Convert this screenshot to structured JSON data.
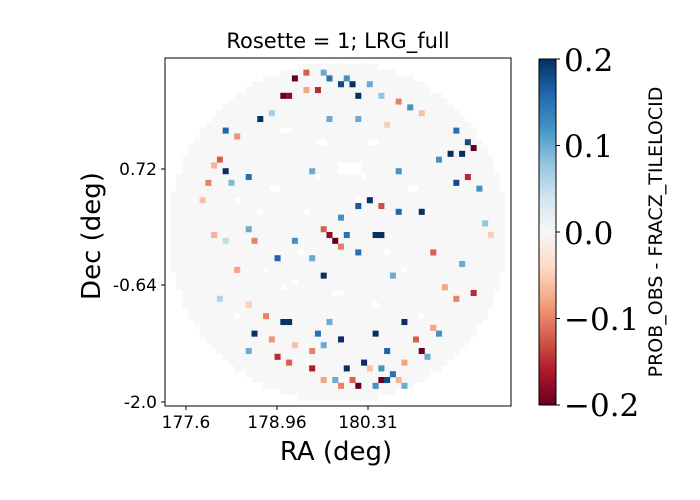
{
  "chart_data": {
    "type": "heatmap",
    "title": "Rosette = 1; LRG_full",
    "xlabel": "RA (deg)",
    "ylabel": "Dec (deg)",
    "x_ticks": [
      "177.6",
      "178.96",
      "180.31"
    ],
    "y_ticks": [
      "0.72",
      "-0.64",
      "-2.0"
    ],
    "colorbar_label": "PROB_OBS - FRACZ_TILELOCID",
    "colorbar_ticks": [
      "0.2",
      "0.1",
      "0.0",
      "−0.1",
      "−0.2"
    ],
    "colorbar_values": [
      0.2,
      0.1,
      0.0,
      -0.1,
      -0.2
    ],
    "vmin": -0.2,
    "vmax": 0.2,
    "colormap": "RdBu",
    "grid": {
      "cols": 60,
      "rows": 60
    },
    "footprint": "circle",
    "background_value": 0.0,
    "cells": [
      [
        22,
        3,
        -0.2
      ],
      [
        24,
        2,
        -0.12
      ],
      [
        27,
        2,
        0.1
      ],
      [
        28,
        3,
        0.15
      ],
      [
        30,
        4,
        0.18
      ],
      [
        32,
        4,
        0.2
      ],
      [
        31,
        3,
        0.12
      ],
      [
        26,
        5,
        -0.15
      ],
      [
        24,
        5,
        -0.08
      ],
      [
        20,
        6,
        -0.2
      ],
      [
        21,
        6,
        -0.18
      ],
      [
        33,
        6,
        0.2
      ],
      [
        35,
        4,
        0.1
      ],
      [
        37,
        6,
        0.08
      ],
      [
        40,
        7,
        -0.1
      ],
      [
        42,
        8,
        0.12
      ],
      [
        44,
        9,
        -0.06
      ],
      [
        18,
        9,
        0.07
      ],
      [
        16,
        10,
        0.2
      ],
      [
        28,
        10,
        0.1
      ],
      [
        33,
        10,
        0.1
      ],
      [
        38,
        11,
        -0.05
      ],
      [
        10,
        12,
        0.16
      ],
      [
        12,
        13,
        -0.09
      ],
      [
        50,
        12,
        0.15
      ],
      [
        52,
        14,
        0.18
      ],
      [
        53,
        15,
        -0.2
      ],
      [
        51,
        16,
        0.2
      ],
      [
        49,
        16,
        0.2
      ],
      [
        47,
        17,
        0.12
      ],
      [
        9,
        17,
        -0.12
      ],
      [
        8,
        18,
        -0.07
      ],
      [
        10,
        19,
        0.2
      ],
      [
        7,
        21,
        -0.1
      ],
      [
        11,
        21,
        0.09
      ],
      [
        14,
        20,
        0.15
      ],
      [
        25,
        19,
        0.1
      ],
      [
        40,
        19,
        0.12
      ],
      [
        52,
        20,
        -0.15
      ],
      [
        50,
        21,
        0.18
      ],
      [
        54,
        22,
        0.12
      ],
      [
        6,
        24,
        -0.06
      ],
      [
        35,
        24,
        0.2
      ],
      [
        37,
        25,
        -0.13
      ],
      [
        33,
        25,
        0.17
      ],
      [
        40,
        26,
        0.16
      ],
      [
        44,
        26,
        0.2
      ],
      [
        30,
        27,
        0.12
      ],
      [
        27,
        29,
        -0.12
      ],
      [
        28,
        30,
        -0.18
      ],
      [
        29,
        31,
        -0.2
      ],
      [
        30,
        32,
        -0.1
      ],
      [
        31,
        30,
        0.15
      ],
      [
        36,
        30,
        0.2
      ],
      [
        37,
        30,
        0.2
      ],
      [
        14,
        29,
        0.1
      ],
      [
        8,
        30,
        -0.07
      ],
      [
        10,
        31,
        0.05
      ],
      [
        15,
        31,
        -0.1
      ],
      [
        22,
        31,
        0.12
      ],
      [
        55,
        28,
        0.08
      ],
      [
        56,
        30,
        -0.05
      ],
      [
        19,
        34,
        0.16
      ],
      [
        25,
        34,
        0.1
      ],
      [
        33,
        33,
        0.15
      ],
      [
        46,
        33,
        -0.12
      ],
      [
        51,
        35,
        0.1
      ],
      [
        12,
        36,
        -0.08
      ],
      [
        27,
        37,
        0.2
      ],
      [
        39,
        37,
        0.1
      ],
      [
        48,
        39,
        -0.08
      ],
      [
        53,
        40,
        -0.15
      ],
      [
        50,
        41,
        -0.1
      ],
      [
        9,
        41,
        0.06
      ],
      [
        14,
        42,
        -0.05
      ],
      [
        17,
        44,
        -0.1
      ],
      [
        20,
        45,
        0.2
      ],
      [
        21,
        45,
        0.2
      ],
      [
        28,
        45,
        0.1
      ],
      [
        41,
        45,
        0.2
      ],
      [
        46,
        46,
        -0.08
      ],
      [
        15,
        47,
        0.2
      ],
      [
        18,
        48,
        -0.09
      ],
      [
        26,
        47,
        0.15
      ],
      [
        30,
        48,
        0.2
      ],
      [
        36,
        47,
        0.2
      ],
      [
        43,
        48,
        -0.12
      ],
      [
        47,
        47,
        0.12
      ],
      [
        22,
        49,
        -0.06
      ],
      [
        27,
        49,
        0.1
      ],
      [
        14,
        50,
        0.1
      ],
      [
        25,
        50,
        -0.1
      ],
      [
        38,
        50,
        0.16
      ],
      [
        44,
        50,
        -0.2
      ],
      [
        19,
        51,
        -0.15
      ],
      [
        21,
        52,
        -0.12
      ],
      [
        34,
        52,
        0.2
      ],
      [
        41,
        52,
        -0.08
      ],
      [
        25,
        53,
        -0.16
      ],
      [
        31,
        53,
        0.2
      ],
      [
        35,
        53,
        -0.06
      ],
      [
        37,
        53,
        0.12
      ],
      [
        39,
        54,
        0.15
      ],
      [
        45,
        51,
        0.1
      ],
      [
        27,
        55,
        -0.08
      ],
      [
        29,
        55,
        0.1
      ],
      [
        32,
        55,
        -0.12
      ],
      [
        37,
        55,
        -0.2
      ],
      [
        38,
        55,
        0.18
      ],
      [
        40,
        55,
        -0.07
      ],
      [
        30,
        56,
        -0.1
      ],
      [
        33,
        56,
        -0.2
      ],
      [
        36,
        56,
        0.12
      ],
      [
        41,
        56,
        0.1
      ]
    ],
    "white_cells": [
      [
        20,
        12
      ],
      [
        21,
        12
      ],
      [
        26,
        14
      ],
      [
        27,
        14
      ],
      [
        35,
        14
      ],
      [
        36,
        14
      ],
      [
        30,
        18
      ],
      [
        31,
        18
      ],
      [
        32,
        18
      ],
      [
        33,
        18
      ],
      [
        30,
        19
      ],
      [
        31,
        19
      ],
      [
        32,
        19
      ],
      [
        33,
        19
      ],
      [
        26,
        20
      ],
      [
        34,
        20
      ],
      [
        18,
        22
      ],
      [
        19,
        22
      ],
      [
        42,
        22
      ],
      [
        43,
        22
      ],
      [
        12,
        24
      ],
      [
        33,
        24
      ],
      [
        16,
        26
      ],
      [
        24,
        26
      ],
      [
        45,
        26
      ],
      [
        23,
        33
      ],
      [
        38,
        33
      ],
      [
        17,
        36
      ],
      [
        41,
        36
      ],
      [
        29,
        40
      ],
      [
        30,
        40
      ],
      [
        20,
        39
      ],
      [
        22,
        38
      ],
      [
        36,
        42
      ],
      [
        12,
        44
      ],
      [
        44,
        44
      ]
    ]
  }
}
